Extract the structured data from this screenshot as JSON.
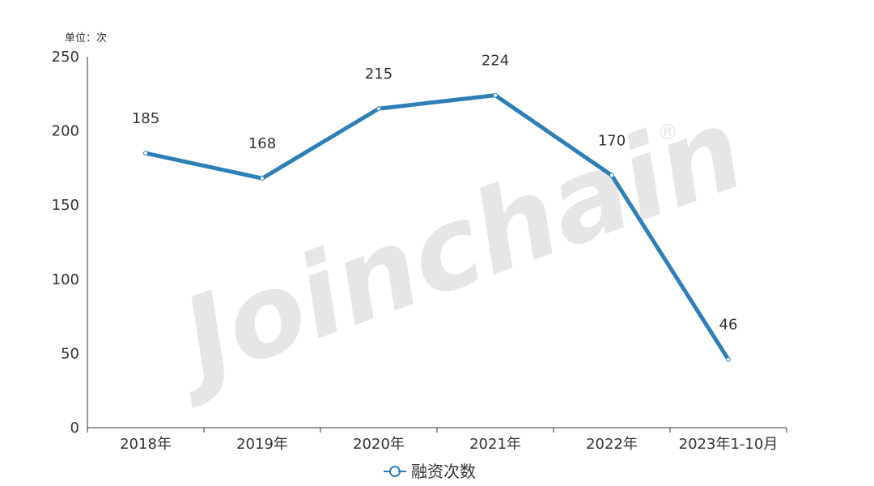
{
  "chart_data": {
    "type": "line",
    "unit_label": "单位：次",
    "categories": [
      "2018年",
      "2019年",
      "2020年",
      "2021年",
      "2022年",
      "2023年1-10月"
    ],
    "series": [
      {
        "name": "融资次数",
        "values": [
          185,
          168,
          215,
          224,
          170,
          46
        ],
        "color": "#2e7fb8"
      }
    ],
    "ylim": [
      0,
      250
    ],
    "yticks": [
      0,
      50,
      100,
      150,
      200,
      250
    ],
    "grid": false,
    "legend_position": "bottom-center",
    "watermark": "Joinchain",
    "watermark_mark": "®"
  }
}
